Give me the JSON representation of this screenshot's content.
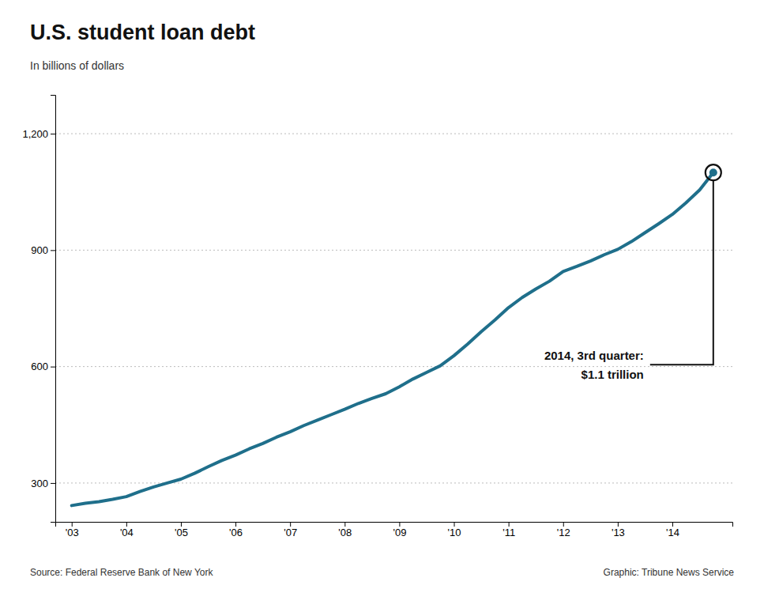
{
  "chart_data": {
    "type": "line",
    "title": "U.S. student loan debt",
    "subtitle": "In billions of dollars",
    "annotations": [
      "2014, 3rd quarter:",
      "$1.1 trillion"
    ],
    "source": "Source: Federal Reserve Bank of New York",
    "credit": "Graphic: Tribune News Service",
    "color": "#1f6f8b",
    "grid": true,
    "x": [
      2003.0,
      2003.25,
      2003.5,
      2003.75,
      2004.0,
      2004.25,
      2004.5,
      2004.75,
      2005.0,
      2005.25,
      2005.5,
      2005.75,
      2006.0,
      2006.25,
      2006.5,
      2006.75,
      2007.0,
      2007.25,
      2007.5,
      2007.75,
      2008.0,
      2008.25,
      2008.5,
      2008.75,
      2009.0,
      2009.25,
      2009.5,
      2009.75,
      2010.0,
      2010.25,
      2010.5,
      2010.75,
      2011.0,
      2011.25,
      2011.5,
      2011.75,
      2012.0,
      2012.25,
      2012.5,
      2012.75,
      2013.0,
      2013.25,
      2013.5,
      2013.75,
      2014.0,
      2014.25,
      2014.5,
      2014.75
    ],
    "values": [
      242,
      248,
      252,
      258,
      265,
      278,
      290,
      300,
      310,
      325,
      342,
      358,
      372,
      388,
      402,
      418,
      432,
      448,
      462,
      476,
      490,
      505,
      518,
      530,
      548,
      568,
      585,
      602,
      628,
      658,
      690,
      720,
      752,
      778,
      800,
      820,
      845,
      858,
      872,
      888,
      902,
      922,
      945,
      968,
      992,
      1022,
      1055,
      1100
    ],
    "xlim": [
      2002.7,
      2015.1
    ],
    "xticks": [
      {
        "value": 2003,
        "label": "'03"
      },
      {
        "value": 2004,
        "label": "'04"
      },
      {
        "value": 2005,
        "label": "'05"
      },
      {
        "value": 2006,
        "label": "'06"
      },
      {
        "value": 2007,
        "label": "'07"
      },
      {
        "value": 2008,
        "label": "'08"
      },
      {
        "value": 2009,
        "label": "'09"
      },
      {
        "value": 2010,
        "label": "'10"
      },
      {
        "value": 2011,
        "label": "'11"
      },
      {
        "value": 2012,
        "label": "'12"
      },
      {
        "value": 2013,
        "label": "'13"
      },
      {
        "value": 2014,
        "label": "'14"
      }
    ],
    "ylim": [
      200,
      1300
    ],
    "yticks": [
      300,
      600,
      900,
      {
        "value": 1200,
        "label": "1,200"
      }
    ]
  }
}
